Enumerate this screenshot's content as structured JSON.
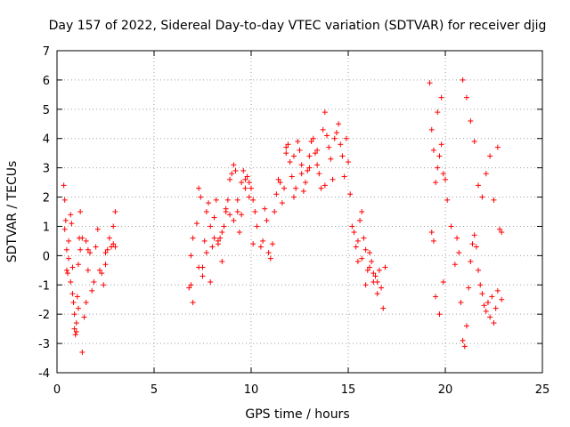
{
  "chart_data": {
    "type": "scatter",
    "title": "Day 157 of 2022, Sidereal Day-to-day VTEC variation (SDTVAR) for receiver djig",
    "xlabel": "GPS time / hours",
    "ylabel": "SDTVAR / TECUs",
    "xlim": [
      0,
      25
    ],
    "ylim": [
      -4,
      7
    ],
    "xticks": [
      "0",
      "5",
      "10",
      "15",
      "20",
      "25"
    ],
    "yticks": [
      "-4",
      "-3",
      "-2",
      "-1",
      "0",
      "1",
      "2",
      "3",
      "4",
      "5",
      "6",
      "7"
    ],
    "grid": true,
    "marker": "+",
    "marker_color": "#ff0000",
    "series": [
      {
        "name": "SDTVAR",
        "x": [
          0.35,
          0.4,
          0.45,
          0.5,
          0.55,
          0.6,
          0.7,
          0.75,
          0.8,
          0.85,
          0.9,
          0.95,
          1.0,
          1.05,
          1.1,
          1.15,
          1.2,
          1.3,
          0.4,
          0.5,
          0.6,
          0.7,
          0.8,
          0.9,
          1.0,
          1.1,
          1.2,
          1.3,
          1.4,
          1.5,
          1.6,
          1.5,
          1.6,
          1.7,
          1.8,
          1.9,
          2.0,
          2.1,
          2.2,
          2.3,
          2.4,
          2.5,
          2.6,
          2.7,
          2.8,
          2.9,
          3.0,
          3.0,
          2.9,
          2.5,
          6.8,
          6.9,
          7.0,
          7.0,
          6.9,
          7.2,
          7.3,
          7.4,
          7.5,
          7.6,
          7.7,
          7.8,
          7.9,
          8.0,
          8.1,
          8.2,
          8.3,
          8.4,
          8.5,
          8.6,
          8.7,
          8.8,
          8.9,
          9.0,
          9.1,
          9.2,
          9.3,
          9.4,
          9.5,
          9.6,
          9.7,
          9.8,
          9.9,
          10.0,
          10.1,
          10.2,
          10.3,
          7.3,
          7.5,
          7.7,
          7.9,
          8.1,
          8.3,
          8.5,
          8.7,
          8.9,
          9.1,
          9.3,
          9.5,
          9.7,
          9.9,
          10.1,
          10.5,
          10.6,
          10.7,
          10.8,
          10.9,
          11.0,
          11.1,
          11.2,
          11.3,
          11.4,
          11.5,
          11.6,
          11.7,
          11.8,
          11.9,
          12.0,
          12.1,
          12.2,
          12.3,
          12.4,
          12.5,
          12.6,
          12.7,
          12.8,
          12.9,
          13.0,
          13.1,
          13.2,
          13.3,
          13.4,
          13.5,
          13.6,
          13.7,
          13.8,
          13.9,
          14.0,
          14.1,
          14.2,
          14.3,
          14.4,
          14.5,
          14.6,
          14.7,
          14.8,
          14.9,
          15.0,
          15.1,
          15.2,
          11.8,
          12.2,
          12.6,
          13.0,
          13.4,
          13.8,
          15.3,
          15.4,
          15.5,
          15.6,
          15.7,
          15.8,
          15.9,
          16.0,
          16.1,
          16.2,
          16.3,
          16.4,
          16.5,
          16.6,
          16.7,
          16.8,
          16.9,
          15.5,
          15.7,
          15.9,
          16.1,
          16.3,
          16.5,
          19.2,
          19.3,
          19.4,
          19.5,
          19.6,
          19.7,
          19.8,
          19.9,
          20.0,
          19.3,
          19.5,
          19.7,
          19.9,
          19.4,
          19.6,
          19.8,
          20.1,
          20.3,
          20.5,
          20.6,
          20.7,
          20.8,
          20.9,
          21.0,
          21.1,
          21.2,
          21.3,
          21.4,
          21.5,
          21.6,
          21.7,
          21.8,
          21.9,
          22.0,
          22.1,
          22.2,
          22.3,
          22.4,
          22.5,
          22.6,
          22.7,
          22.8,
          22.9,
          20.9,
          21.1,
          21.3,
          21.5,
          21.7,
          21.9,
          22.1,
          22.3,
          22.5,
          22.7,
          22.9
        ],
        "y": [
          2.4,
          1.9,
          1.2,
          0.2,
          -0.6,
          0.5,
          1.4,
          1.1,
          -0.4,
          -1.6,
          -2.5,
          -2.7,
          -2.3,
          -1.4,
          -0.3,
          0.6,
          1.5,
          -3.3,
          0.9,
          -0.5,
          -0.1,
          -0.9,
          -1.3,
          -2.0,
          -2.6,
          -1.8,
          0.2,
          0.6,
          -2.1,
          -1.6,
          -0.5,
          0.5,
          0.2,
          0.1,
          -1.2,
          -0.9,
          0.3,
          0.9,
          -0.5,
          -0.6,
          -1.0,
          -0.3,
          0.2,
          0.6,
          0.3,
          1.0,
          1.5,
          0.3,
          0.4,
          0.1,
          -1.1,
          0.0,
          0.6,
          -1.6,
          -1.0,
          1.1,
          2.3,
          2.0,
          -0.4,
          0.5,
          1.5,
          1.8,
          1.0,
          0.3,
          1.3,
          1.9,
          0.5,
          0.6,
          -0.2,
          1.0,
          1.5,
          1.9,
          2.6,
          2.8,
          3.1,
          2.9,
          1.5,
          0.8,
          2.5,
          2.9,
          2.6,
          2.7,
          2.5,
          2.3,
          1.9,
          1.5,
          1.0,
          -0.4,
          -0.7,
          0.1,
          -0.9,
          0.6,
          0.4,
          0.8,
          1.6,
          1.4,
          1.2,
          1.9,
          1.4,
          2.3,
          2.0,
          0.4,
          0.3,
          0.5,
          1.6,
          1.2,
          0.1,
          -0.1,
          0.4,
          1.5,
          2.1,
          2.6,
          2.5,
          1.8,
          2.3,
          3.5,
          3.8,
          3.2,
          2.7,
          2.0,
          2.3,
          3.9,
          3.6,
          3.1,
          2.2,
          2.5,
          2.9,
          3.4,
          3.9,
          4.0,
          3.5,
          3.1,
          2.8,
          2.3,
          4.3,
          4.9,
          4.1,
          3.7,
          3.3,
          2.6,
          4.0,
          4.2,
          4.5,
          3.8,
          3.4,
          2.7,
          4.0,
          3.2,
          2.1,
          1.0,
          3.7,
          3.4,
          2.8,
          3.0,
          3.6,
          2.4,
          0.8,
          0.3,
          -0.2,
          1.2,
          1.5,
          0.6,
          0.2,
          -0.5,
          -0.4,
          -0.2,
          -0.9,
          -0.7,
          -1.3,
          -0.5,
          -1.1,
          -1.8,
          -0.4,
          0.5,
          -0.1,
          -1.0,
          0.1,
          -0.6,
          -0.9,
          5.9,
          4.3,
          3.6,
          2.5,
          3.0,
          3.4,
          3.8,
          2.8,
          2.6,
          0.8,
          -1.4,
          -2.0,
          -0.9,
          0.5,
          4.9,
          5.4,
          1.9,
          1.0,
          -0.3,
          0.6,
          0.1,
          -1.6,
          -2.9,
          -3.1,
          -2.4,
          -1.1,
          -0.2,
          0.4,
          0.7,
          0.3,
          -0.5,
          -1.0,
          -1.3,
          -1.7,
          -1.9,
          -1.6,
          -2.1,
          -1.4,
          -2.3,
          -1.8,
          -1.2,
          0.9,
          0.8,
          6.0,
          5.4,
          4.6,
          3.9,
          2.4,
          2.0,
          2.8,
          3.4,
          1.9,
          3.7,
          -1.5
        ],
        "color": "#ff0000"
      }
    ]
  }
}
